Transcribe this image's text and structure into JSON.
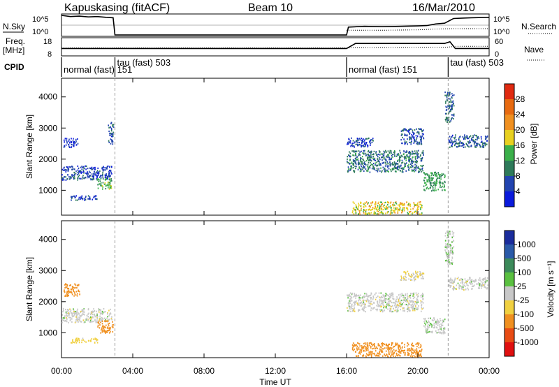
{
  "header": {
    "station": "Kapuskasing (fitACF)",
    "beam": "Beam 10",
    "date": "16/Mar/2010"
  },
  "side_labels": {
    "nsky": "N.Sky",
    "freq_line1": "Freq.",
    "freq_line2": "[MHz]",
    "cpid": "CPID",
    "nsearch": "N.Search",
    "nave": "Nave"
  },
  "param_axes": {
    "nsky_ticks": [
      "10^5",
      "10^0"
    ],
    "nsearch_ticks": [
      "10^5",
      "10^0"
    ],
    "freq_ticks": [
      "18",
      "8"
    ],
    "nave_ticks": [
      "60",
      "0"
    ]
  },
  "cpid_segments": [
    {
      "label": "normal (fast) 151",
      "start": 0.0,
      "end": 3.0,
      "row": "lower"
    },
    {
      "label": "tau (fast) 503",
      "start": 3.0,
      "end": 4.0,
      "row": "upper"
    },
    {
      "label": "normal (fast) 151",
      "start": 16.0,
      "end": 21.7,
      "row": "lower"
    },
    {
      "label": "tau (fast) 503",
      "start": 21.7,
      "end": 24.0,
      "row": "upper"
    }
  ],
  "time_axis": {
    "label": "Time UT",
    "ticks": [
      "00:00",
      "04:00",
      "08:00",
      "12:00",
      "16:00",
      "20:00",
      "00:00"
    ],
    "range_hours": [
      0,
      24
    ]
  },
  "colorbars": {
    "power": {
      "label": "Power [dB]",
      "ticks": [
        "4",
        "8",
        "12",
        "16",
        "20",
        "24",
        "28"
      ],
      "colors": [
        "#0a1adc",
        "#2244b0",
        "#2e7a5a",
        "#3bb04a",
        "#e8d020",
        "#f09020",
        "#e86a10",
        "#e02a10"
      ]
    },
    "velocity": {
      "label": "Velocity [m s⁻¹]",
      "ticks": [
        "1000",
        "500",
        "100",
        "25",
        "-25",
        "-100",
        "-500",
        "-1000"
      ],
      "colors": [
        "#1a2c9c",
        "#2a5aa8",
        "#3c8a5a",
        "#5ac040",
        "#c8c8c8",
        "#f0d040",
        "#f09020",
        "#e84c14",
        "#e01010"
      ]
    }
  },
  "chart_data": [
    {
      "type": "line",
      "title": "N.Sky / N.Search",
      "x_label": "Time UT",
      "xlim": [
        0,
        24
      ],
      "series": [
        {
          "name": "N.Sky",
          "x": [
            0,
            0.5,
            1,
            1.5,
            2,
            2.5,
            2.9,
            3.0,
            16.0,
            16.1,
            17,
            18,
            19,
            20,
            20.5,
            21,
            21.5,
            22,
            22.5,
            23,
            24
          ],
          "y": [
            5,
            4.7,
            4.8,
            4.6,
            4.7,
            4.5,
            4.4,
            0,
            0,
            2,
            2.2,
            2.1,
            2.2,
            2.3,
            2.4,
            2.8,
            3.0,
            4.2,
            4.3,
            4.4,
            4.5
          ]
        },
        {
          "name": "N.Search",
          "x": [
            16,
            18,
            20,
            21,
            22,
            24
          ],
          "y": [
            1.2,
            1.2,
            1.3,
            1.5,
            1.6,
            1.6
          ]
        }
      ]
    },
    {
      "type": "line",
      "title": "Freq / Nave",
      "x_label": "Time UT",
      "xlim": [
        0,
        24
      ],
      "series": [
        {
          "name": "Freq",
          "x": [
            0,
            3.0,
            16,
            16.5,
            18,
            20.3,
            20.5,
            21.3,
            21.5,
            21.8,
            22.1,
            24
          ],
          "y": [
            12,
            12,
            12,
            15,
            15,
            15,
            15,
            15,
            15,
            16,
            12,
            12
          ]
        },
        {
          "name": "Nave",
          "x": [
            0,
            3.0,
            16,
            20.5,
            21.5,
            22.2,
            24
          ],
          "y": [
            26,
            26,
            26,
            28,
            28,
            32,
            32
          ]
        }
      ]
    },
    {
      "type": "heatmap",
      "parameter": "Power",
      "y_label": "Slant Range [km]",
      "x_label": "Time UT",
      "xlim": [
        0,
        24
      ],
      "ylim": [
        200,
        4600
      ],
      "y_ticks": [
        1000,
        2000,
        3000,
        4000
      ],
      "clim": [
        0,
        30
      ],
      "clusters": [
        {
          "t0": 0.0,
          "t1": 2.8,
          "r0": 1350,
          "r1": 1800,
          "value": 6
        },
        {
          "t0": 0.5,
          "t1": 2.0,
          "r0": 700,
          "r1": 850,
          "value": 5
        },
        {
          "t0": 2.0,
          "t1": 2.8,
          "r0": 1050,
          "r1": 1400,
          "value": 14
        },
        {
          "t0": 0.1,
          "t1": 0.9,
          "r0": 2400,
          "r1": 2700,
          "value": 4
        },
        {
          "t0": 2.6,
          "t1": 2.9,
          "r0": 2500,
          "r1": 3200,
          "value": 7
        },
        {
          "t0": 16.0,
          "t1": 20.3,
          "r0": 1600,
          "r1": 2300,
          "value": 9
        },
        {
          "t0": 16.0,
          "t1": 17.5,
          "r0": 2400,
          "r1": 2700,
          "value": 5
        },
        {
          "t0": 19.0,
          "t1": 20.3,
          "r0": 2500,
          "r1": 3000,
          "value": 6
        },
        {
          "t0": 16.3,
          "t1": 20.2,
          "r0": 250,
          "r1": 650,
          "value": 18
        },
        {
          "t0": 20.3,
          "t1": 21.5,
          "r0": 1000,
          "r1": 1600,
          "value": 12
        },
        {
          "t0": 21.5,
          "t1": 22.0,
          "r0": 3200,
          "r1": 4200,
          "value": 8
        },
        {
          "t0": 21.7,
          "t1": 23.9,
          "r0": 2400,
          "r1": 2800,
          "value": 7
        }
      ]
    },
    {
      "type": "heatmap",
      "parameter": "Velocity",
      "y_label": "Slant Range [km]",
      "x_label": "Time UT",
      "xlim": [
        0,
        24
      ],
      "ylim": [
        200,
        4600
      ],
      "y_ticks": [
        1000,
        2000,
        3000,
        4000
      ],
      "clim": [
        -1000,
        1000
      ],
      "clusters": [
        {
          "t0": 0.0,
          "t1": 2.8,
          "r0": 1350,
          "r1": 1800,
          "value": 0
        },
        {
          "t0": 2.0,
          "t1": 2.9,
          "r0": 1000,
          "r1": 1400,
          "value": -450
        },
        {
          "t0": 0.1,
          "t1": 1.0,
          "r0": 2200,
          "r1": 2600,
          "value": -300
        },
        {
          "t0": 0.5,
          "t1": 2.0,
          "r0": 700,
          "r1": 850,
          "value": -50
        },
        {
          "t0": 16.0,
          "t1": 20.3,
          "r0": 1700,
          "r1": 2300,
          "value": 0
        },
        {
          "t0": 19.0,
          "t1": 20.3,
          "r0": 2700,
          "r1": 3000,
          "value": -20
        },
        {
          "t0": 16.3,
          "t1": 20.2,
          "r0": 250,
          "r1": 700,
          "value": -150
        },
        {
          "t0": 20.3,
          "t1": 21.5,
          "r0": 1000,
          "r1": 1500,
          "value": 5
        },
        {
          "t0": 21.5,
          "t1": 22.0,
          "r0": 3200,
          "r1": 4300,
          "value": 10
        },
        {
          "t0": 21.7,
          "t1": 23.9,
          "r0": 2400,
          "r1": 2800,
          "value": 0
        }
      ]
    }
  ]
}
